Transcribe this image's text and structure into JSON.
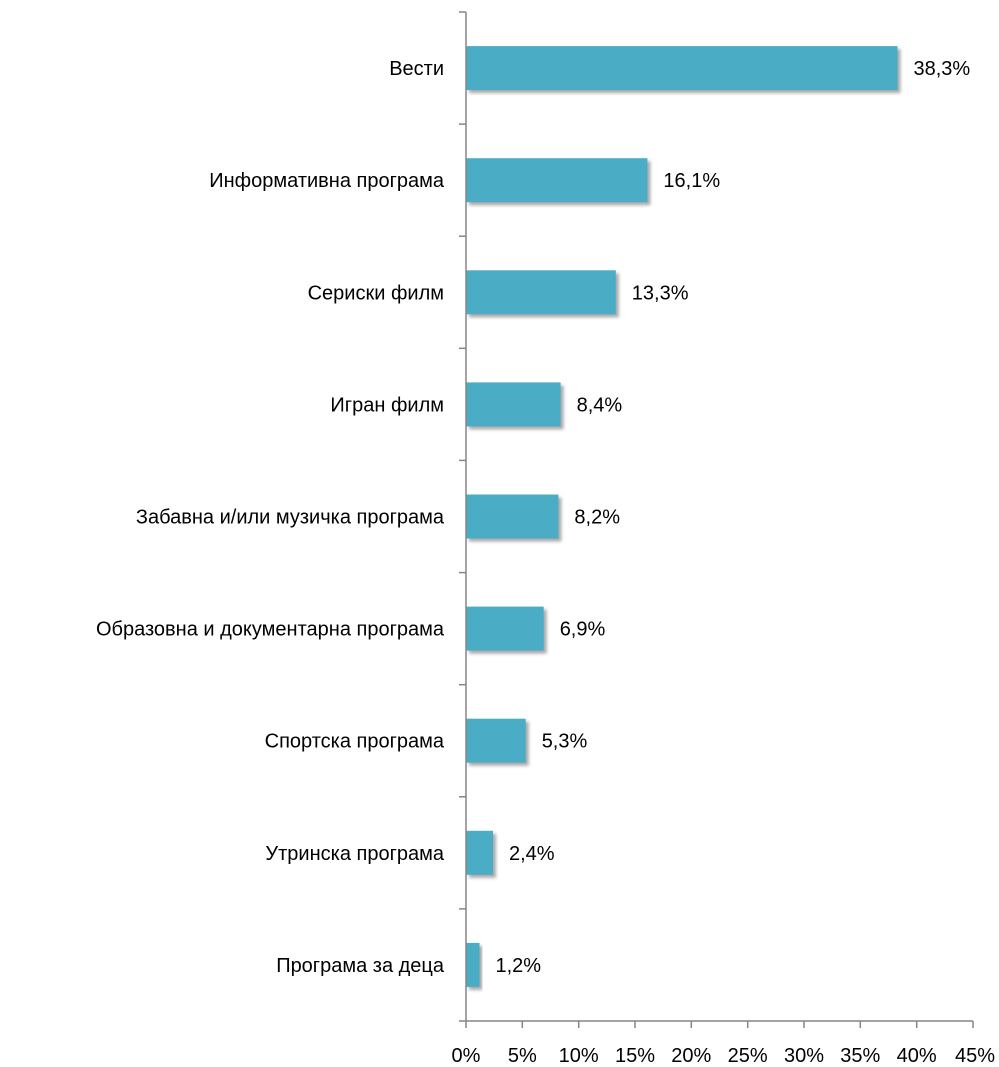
{
  "chart_data": {
    "type": "bar",
    "orientation": "horizontal",
    "title": "",
    "xlabel": "",
    "ylabel": "",
    "categories": [
      "Вести",
      "Информативна програма",
      "Сериски филм",
      "Игран филм",
      "Забавна и/или музичка програма",
      "Образовна и документарна програма",
      "Спортска програма",
      "Утринска програма",
      "Програма за деца"
    ],
    "values": [
      38.3,
      16.1,
      13.3,
      8.4,
      8.2,
      6.9,
      5.3,
      2.4,
      1.2
    ],
    "value_labels": [
      "38,3%",
      "16,1%",
      "13,3%",
      "8,4%",
      "8,2%",
      "6,9%",
      "5,3%",
      "2,4%",
      "1,2%"
    ],
    "xlim": [
      0,
      45
    ],
    "xticks": [
      0,
      5,
      10,
      15,
      20,
      25,
      30,
      35,
      40,
      45
    ],
    "xtick_labels": [
      "0%",
      "5%",
      "10%",
      "15%",
      "20%",
      "25%",
      "30%",
      "35%",
      "40%",
      "45%"
    ],
    "grid": false,
    "legend": "none",
    "colors": {
      "bar": "#4bacc6",
      "bar_shadow": "#b8b8b8",
      "axis": "#868686"
    }
  }
}
